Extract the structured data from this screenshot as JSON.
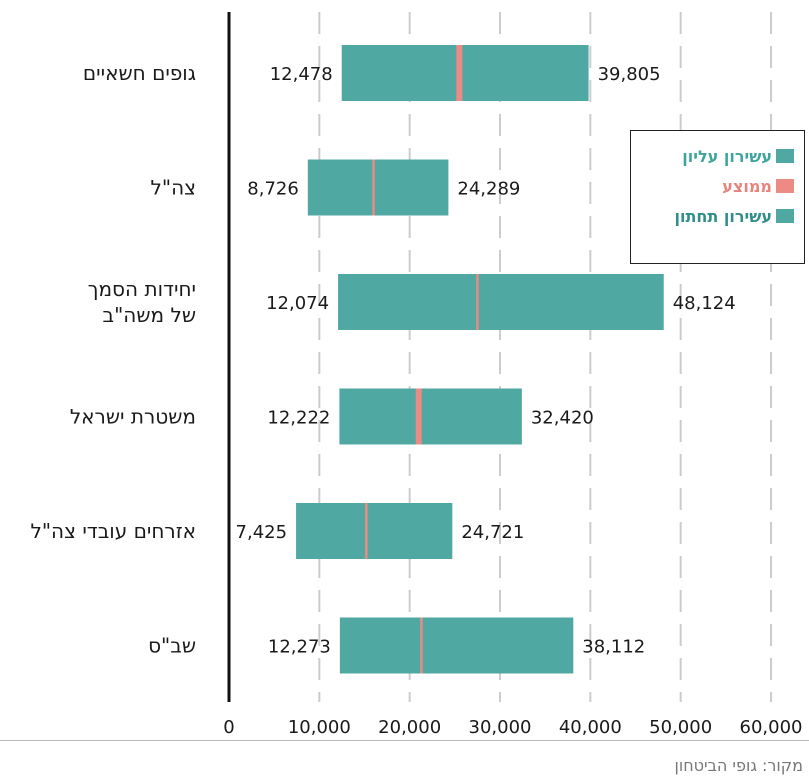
{
  "chart_data": {
    "type": "bar",
    "orientation": "horizontal",
    "subtype": "range",
    "categories": [
      [
        "גופים חשאיים"
      ],
      [
        "צה\"ל"
      ],
      [
        "יחידות הסמך",
        " של משה\"ב"
      ],
      [
        "משטרת ישראל"
      ],
      [
        "אזרחים עובדי צה\"ל"
      ],
      [
        "שב\"ס"
      ]
    ],
    "series": [
      {
        "name": "עשירון תחתון",
        "values": [
          12478,
          8726,
          12074,
          12222,
          7425,
          12273
        ]
      },
      {
        "name": "ממוצע",
        "values": [
          25500,
          16000,
          27500,
          21000,
          15200,
          21300
        ]
      },
      {
        "name": "עשירון עליון",
        "values": [
          39805,
          24289,
          48124,
          32420,
          24721,
          38112
        ]
      }
    ],
    "low_labels": [
      "12,478",
      "8,726",
      "12,074",
      "12,222",
      "7,425",
      "12,273"
    ],
    "high_labels": [
      "39,805",
      "24,289",
      "48,124",
      "32,420",
      "24,721",
      "38,112"
    ],
    "xlim": [
      0,
      60000
    ],
    "xticks": [
      0,
      10000,
      20000,
      30000,
      40000,
      50000,
      60000
    ],
    "xtick_labels": [
      "0",
      "10,000",
      "20,000",
      "30,000",
      "40,000",
      "50,000",
      "60,000"
    ],
    "grid": "vertical dashed",
    "legend_position": "right",
    "colors": {
      "bar": "#4fa8a1",
      "mean": "#ec8b84",
      "grid": "#cccccc",
      "legend_top": "#3fa59c",
      "legend_mid": "#e8837d",
      "legend_bottom": "#2f8f88"
    }
  },
  "legend": [
    {
      "label": "עשירון עליון",
      "color": "#4fa8a1",
      "text_color": "#3fa59c"
    },
    {
      "label": "ממוצע",
      "color": "#ec8b84",
      "text_color": "#e8837d"
    },
    {
      "label": "עשירון תחתון",
      "color": "#4fa8a1",
      "text_color": "#2f8f88"
    }
  ],
  "source": "מקור: גופי הביטחון"
}
